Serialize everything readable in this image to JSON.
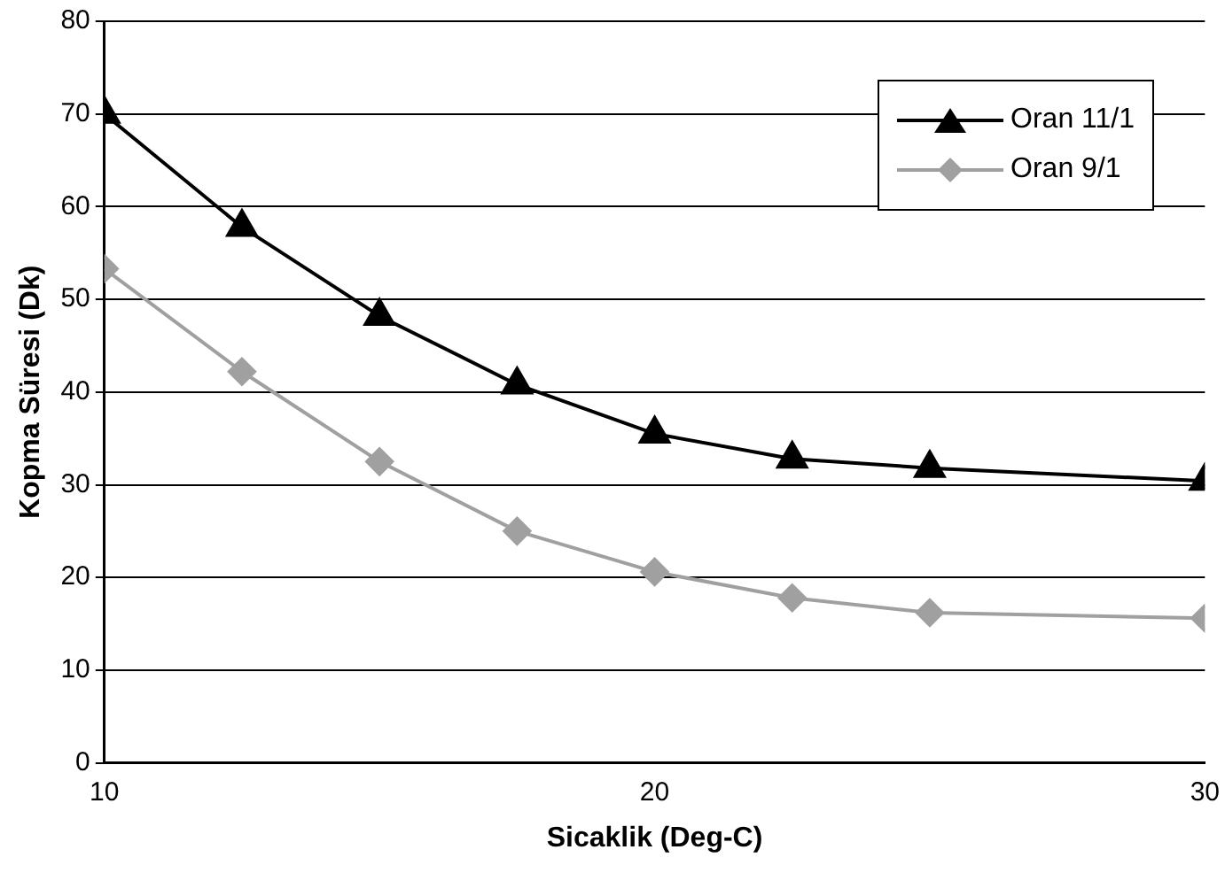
{
  "chart_data": {
    "type": "line",
    "xlabel": "Sicaklik (Deg-C)",
    "ylabel": "Kopma Süresi (Dk)",
    "xlim": [
      10,
      30
    ],
    "xticks": [
      10,
      20,
      30
    ],
    "ylim": [
      0,
      80
    ],
    "yticks": [
      0,
      10,
      20,
      30,
      40,
      50,
      60,
      70,
      80
    ],
    "grid": "y",
    "legend": "top right",
    "line_style": "solid",
    "series": [
      {
        "name": "Oran 11/1",
        "color": "#000000",
        "marker": "triangle",
        "x": [
          10,
          12.5,
          15,
          17.5,
          20,
          22.5,
          25,
          30
        ],
        "values": [
          70,
          57.8,
          48.2,
          40.8,
          35.5,
          32.8,
          31.8,
          30.4
        ]
      },
      {
        "name": "Oran 9/1",
        "color": "#a0a0a0",
        "marker": "diamond",
        "x": [
          10,
          12.5,
          15,
          17.5,
          20,
          22.5,
          25,
          30
        ],
        "values": [
          53.3,
          42.2,
          32.5,
          25,
          20.6,
          17.8,
          16.2,
          15.6
        ]
      }
    ]
  }
}
